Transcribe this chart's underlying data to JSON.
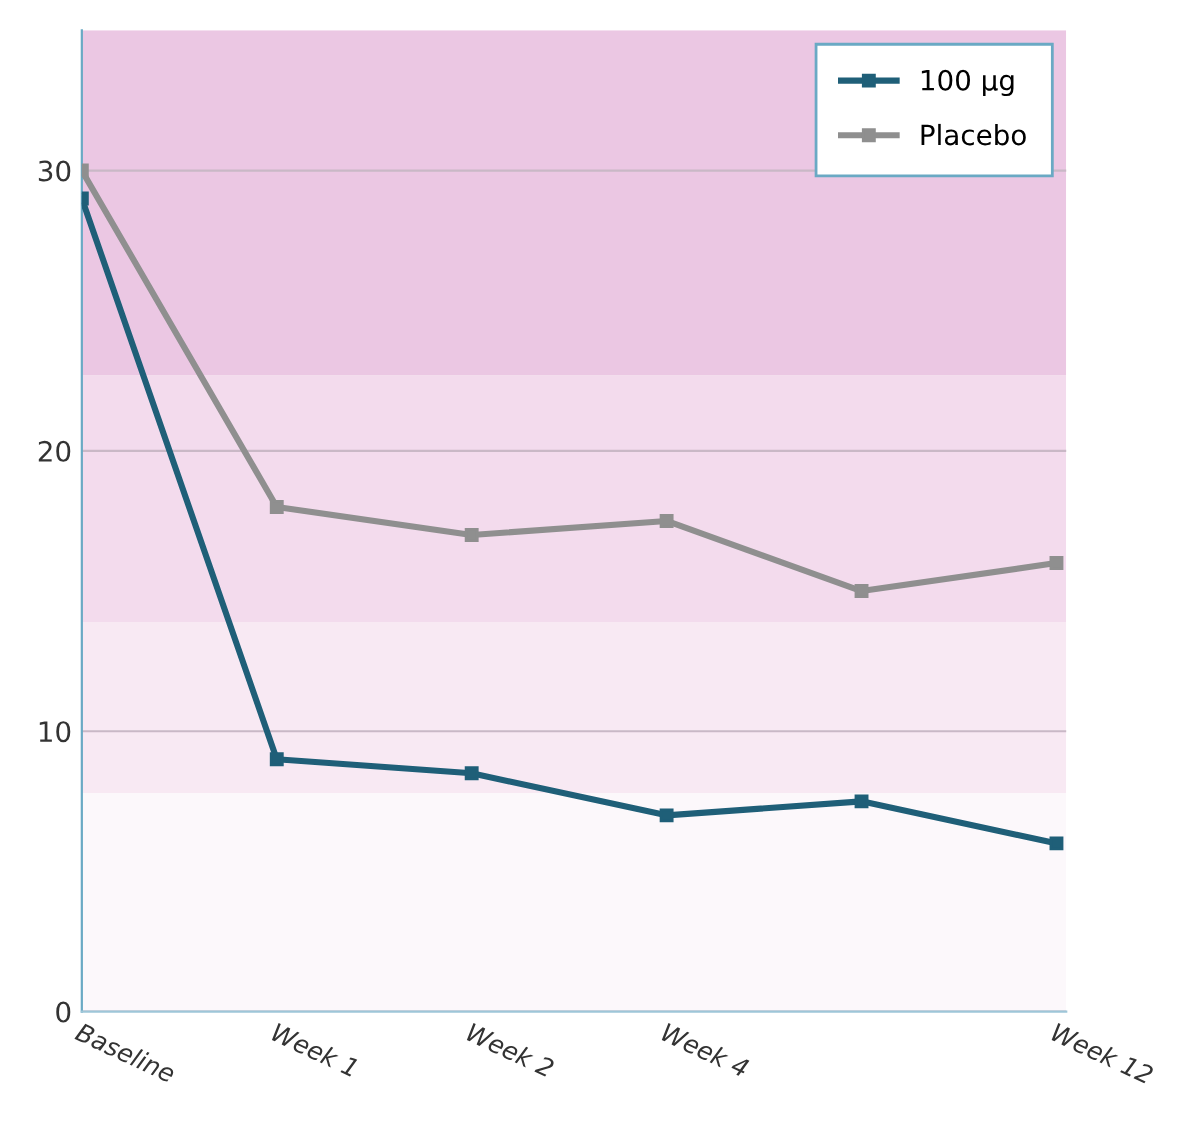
{
  "chart_data": {
    "type": "line",
    "categories": [
      "Baseline",
      "Week 1",
      "Week 2",
      "Week 4",
      null,
      "Week 12"
    ],
    "series": [
      {
        "name": "100 µg",
        "color": "#1f5f78",
        "values": [
          29,
          9,
          8.5,
          7,
          7.5,
          6
        ]
      },
      {
        "name": "Placebo",
        "color": "#8f8f8f",
        "values": [
          30,
          18,
          17,
          17.5,
          15,
          16
        ]
      }
    ],
    "ylim": [
      0,
      35
    ],
    "yticks": [
      0,
      10,
      20,
      30
    ],
    "bands": [
      {
        "axis": "y",
        "from": 0,
        "to": 7.8,
        "color": "#fcf8fb"
      },
      {
        "axis": "y",
        "from": 7.8,
        "to": 13.9,
        "color": "#f8e9f3"
      },
      {
        "axis": "y",
        "from": 13.9,
        "to": 22.7,
        "color": "#f3dbed"
      },
      {
        "axis": "y",
        "from": 22.7,
        "to": 35,
        "color": "#ebc7e3"
      }
    ],
    "grid": "y",
    "legend": "top right",
    "marker": "square",
    "line_style": "solid"
  }
}
